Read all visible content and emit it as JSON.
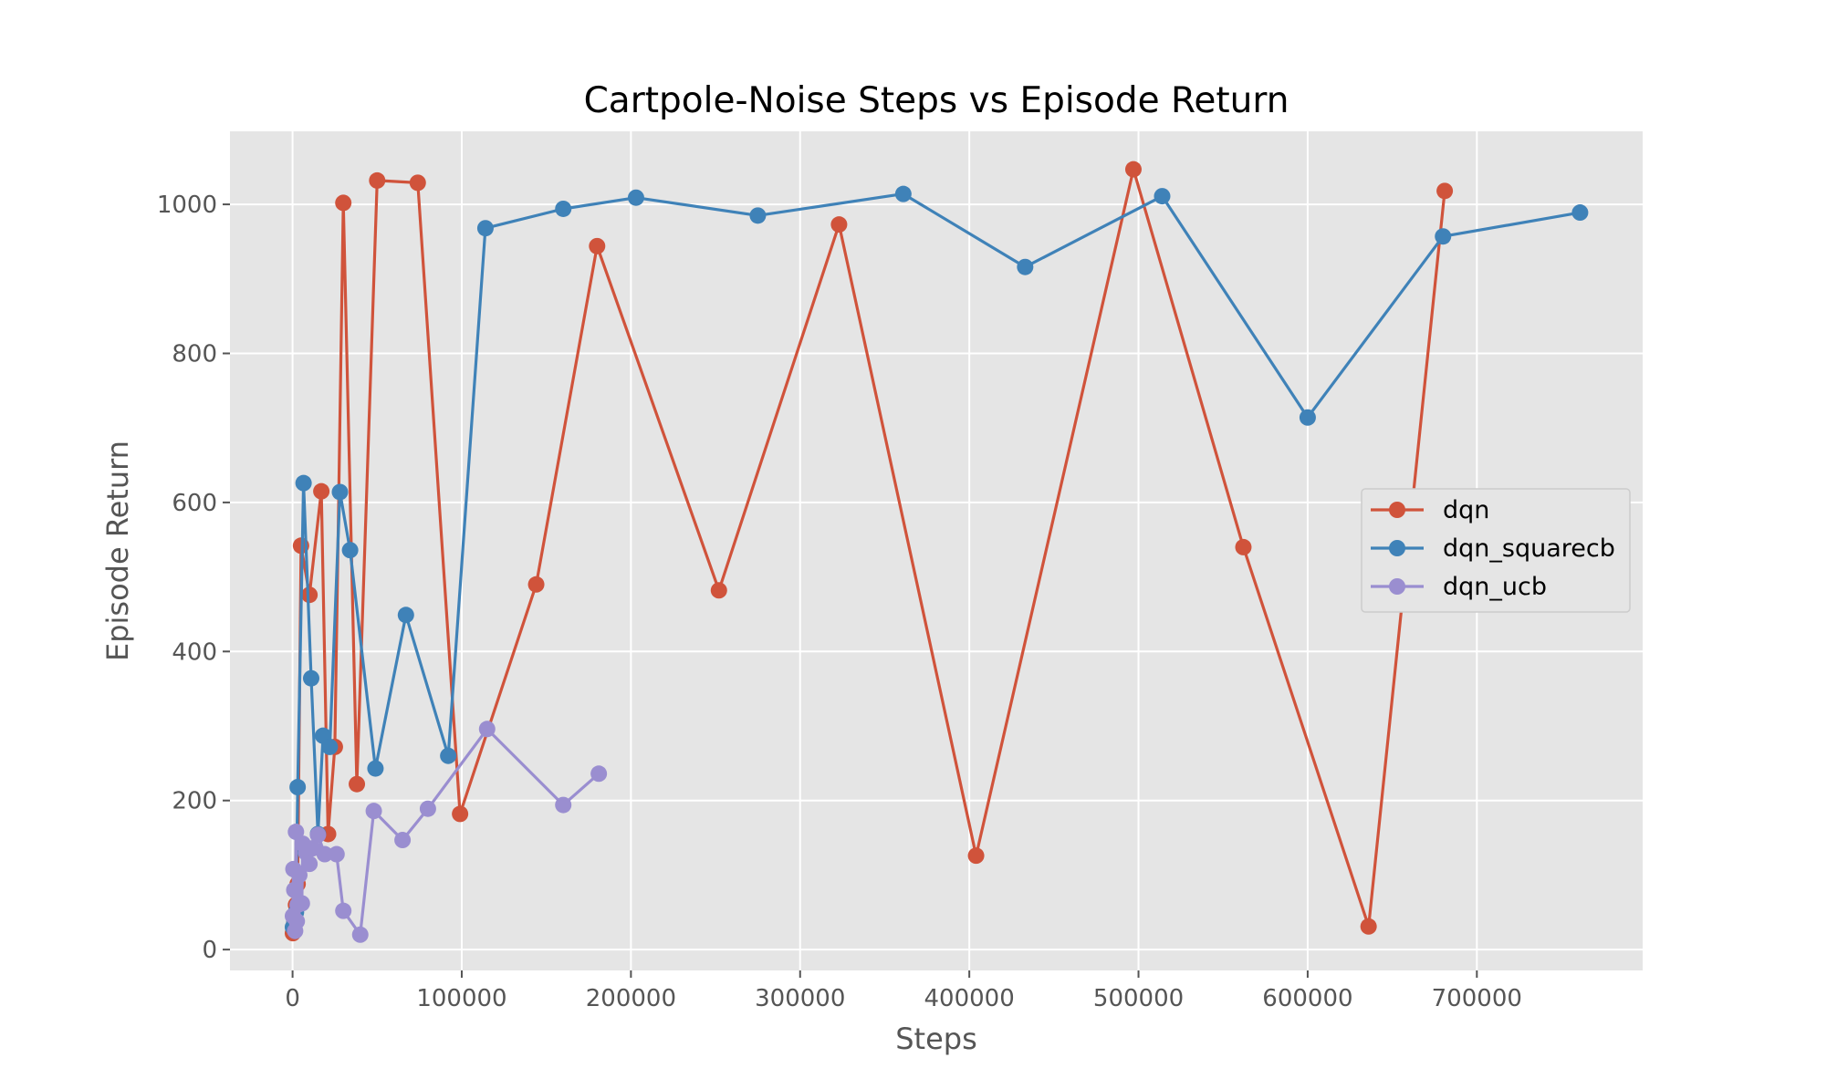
{
  "chart_data": {
    "type": "line",
    "title": "Cartpole-Noise Steps vs Episode Return",
    "xlabel": "Steps",
    "ylabel": "Episode Return",
    "xlim": [
      -37000,
      798000
    ],
    "ylim": [
      -28,
      1098
    ],
    "xticks": [
      {
        "value": 0,
        "label": "0"
      },
      {
        "value": 100000,
        "label": "100000"
      },
      {
        "value": 200000,
        "label": "200000"
      },
      {
        "value": 300000,
        "label": "300000"
      },
      {
        "value": 400000,
        "label": "400000"
      },
      {
        "value": 500000,
        "label": "500000"
      },
      {
        "value": 600000,
        "label": "600000"
      },
      {
        "value": 700000,
        "label": "700000"
      }
    ],
    "yticks": [
      {
        "value": 0,
        "label": "0"
      },
      {
        "value": 200,
        "label": "200"
      },
      {
        "value": 400,
        "label": "400"
      },
      {
        "value": 600,
        "label": "600"
      },
      {
        "value": 800,
        "label": "800"
      },
      {
        "value": 1000,
        "label": "1000"
      }
    ],
    "grid": true,
    "legend_position": "center-right",
    "colors": {
      "background": "#e5e5e5",
      "grid": "#ffffff"
    },
    "series": [
      {
        "name": "dqn",
        "color": "#d0533b",
        "x": [
          200,
          1000,
          2000,
          3000,
          5000,
          10000,
          17000,
          21000,
          25000,
          30000,
          38000,
          50000,
          74000,
          99000,
          144000,
          180000,
          252000,
          323000,
          404000,
          497000,
          562000,
          636000,
          681000
        ],
        "y": [
          22,
          35,
          60,
          88,
          542,
          476,
          615,
          155,
          272,
          1002,
          222,
          1032,
          1029,
          182,
          490,
          944,
          482,
          973,
          126,
          1047,
          540,
          31,
          1018
        ]
      },
      {
        "name": "dqn_squarecb",
        "color": "#3f82b8",
        "x": [
          200,
          1000,
          2000,
          3000,
          6500,
          11000,
          15000,
          18000,
          22000,
          28000,
          34000,
          49000,
          67000,
          92000,
          114000,
          160000,
          203000,
          275000,
          361000,
          433000,
          514000,
          600000,
          680000,
          761000
        ],
        "y": [
          30,
          40,
          50,
          218,
          626,
          364,
          155,
          287,
          272,
          614,
          536,
          243,
          449,
          260,
          968,
          994,
          1009,
          985,
          1014,
          916,
          1011,
          714,
          957,
          989
        ]
      },
      {
        "name": "dqn_ucb",
        "color": "#9a8ed0",
        "x": [
          200,
          500,
          1000,
          1500,
          2000,
          2500,
          3000,
          4000,
          5500,
          6000,
          8000,
          10000,
          12000,
          15000,
          19000,
          26000,
          30000,
          40000,
          48000,
          65000,
          80000,
          115000,
          160000,
          181000
        ],
        "y": [
          45,
          108,
          80,
          25,
          158,
          38,
          60,
          100,
          62,
          142,
          130,
          115,
          136,
          154,
          128,
          128,
          52,
          20,
          186,
          147,
          189,
          296,
          194,
          236
        ]
      }
    ]
  }
}
